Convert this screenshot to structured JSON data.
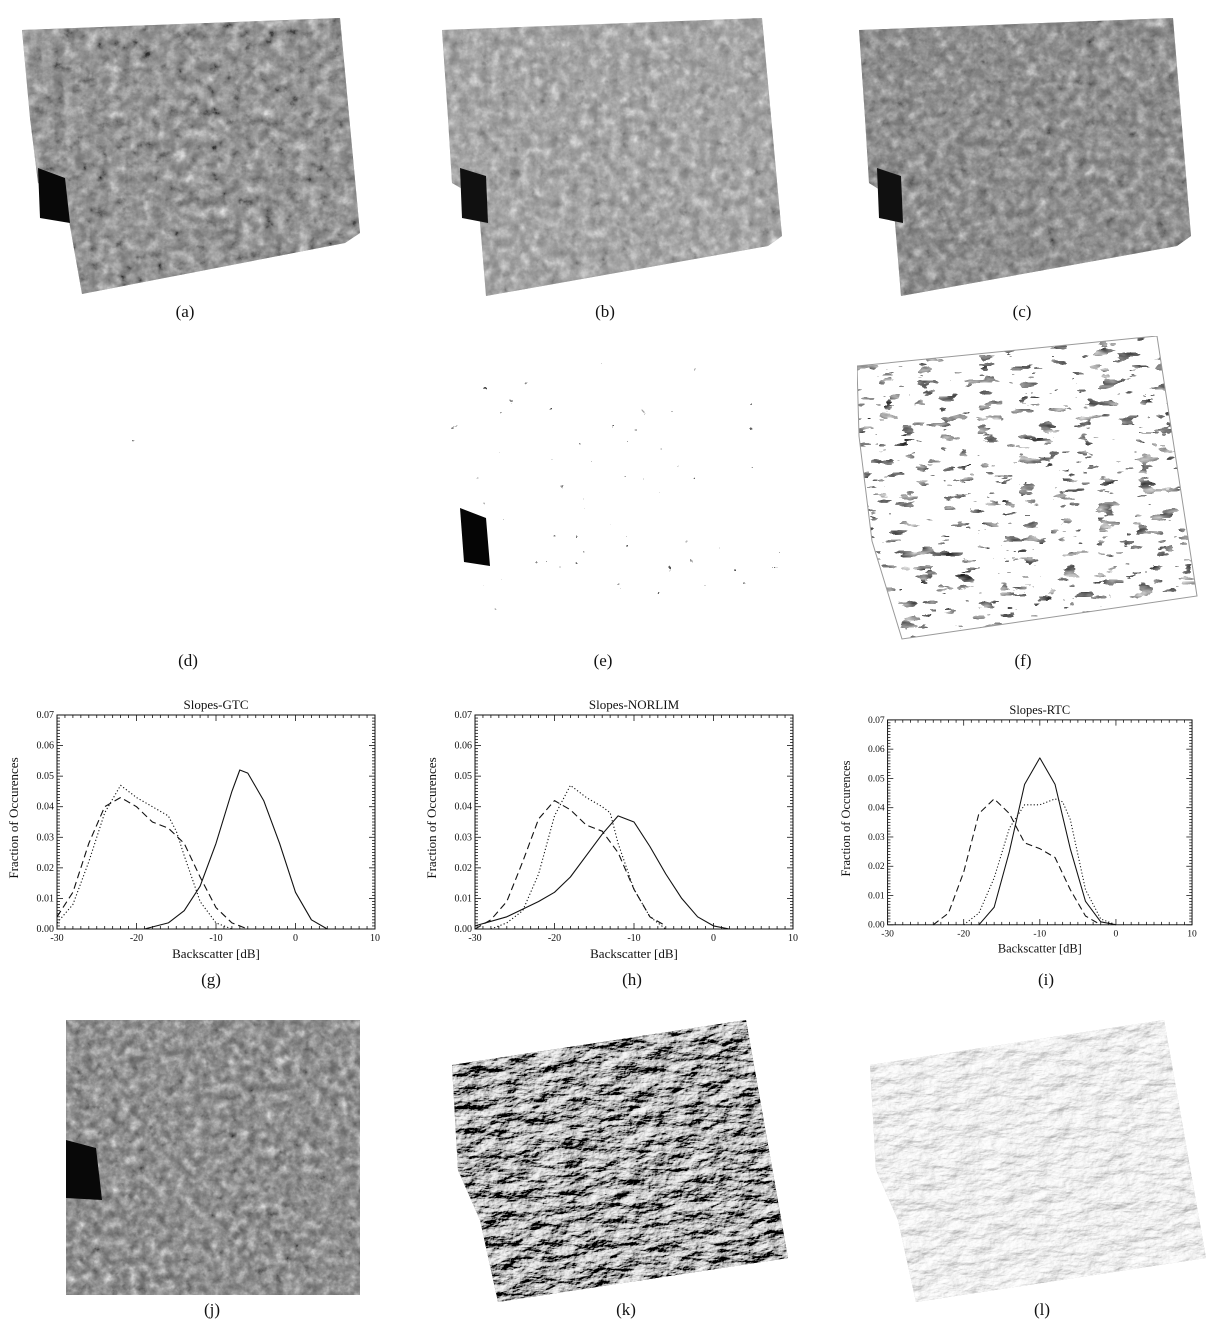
{
  "panels": [
    {
      "id": "a",
      "label": "(a)",
      "kind": "sar-gtc-image"
    },
    {
      "id": "b",
      "label": "(b)",
      "kind": "sar-norlim-image"
    },
    {
      "id": "c",
      "label": "(c)",
      "kind": "sar-rtc-image"
    },
    {
      "id": "d",
      "label": "(d)",
      "kind": "binary-slope-mask"
    },
    {
      "id": "e",
      "label": "(e)",
      "kind": "binary-slope-mask"
    },
    {
      "id": "f",
      "label": "(f)",
      "kind": "binary-slope-mask"
    },
    {
      "id": "g",
      "label": "(g)",
      "kind": "histogram"
    },
    {
      "id": "h",
      "label": "(h)",
      "kind": "histogram"
    },
    {
      "id": "i",
      "label": "(i)",
      "kind": "histogram"
    },
    {
      "id": "j",
      "label": "(j)",
      "kind": "sar-image"
    },
    {
      "id": "k",
      "label": "(k)",
      "kind": "shaded-relief-dark"
    },
    {
      "id": "l",
      "label": "(l)",
      "kind": "shaded-relief-light"
    }
  ],
  "chart_data": [
    {
      "type": "line",
      "title": "Slopes-GTC",
      "xlabel": "Backscatter [dB]",
      "ylabel": "Fraction of Occurences",
      "xlim": [
        -30,
        10
      ],
      "ylim": [
        0,
        0.07
      ],
      "xticks": [
        "-30",
        "-20",
        "-10",
        "0",
        "10"
      ],
      "yticks": [
        "0.00",
        "0.01",
        "0.02",
        "0.03",
        "0.04",
        "0.05",
        "0.06",
        "0.07"
      ],
      "series": [
        {
          "style": "solid",
          "x": [
            -19,
            -16,
            -14,
            -12,
            -10,
            -8,
            -7,
            -6,
            -4,
            -2,
            0,
            2,
            4
          ],
          "y": [
            0.0,
            0.002,
            0.006,
            0.014,
            0.028,
            0.045,
            0.052,
            0.051,
            0.042,
            0.028,
            0.012,
            0.003,
            0.0
          ]
        },
        {
          "style": "dashed",
          "x": [
            -30,
            -28,
            -26,
            -24,
            -22,
            -20,
            -18,
            -16,
            -14,
            -12,
            -10,
            -8,
            -6
          ],
          "y": [
            0.004,
            0.012,
            0.028,
            0.04,
            0.043,
            0.04,
            0.035,
            0.033,
            0.028,
            0.017,
            0.007,
            0.002,
            0.0
          ]
        },
        {
          "style": "dotted",
          "x": [
            -30,
            -28,
            -26,
            -24,
            -22,
            -20,
            -18,
            -16,
            -15,
            -14,
            -12,
            -10,
            -8
          ],
          "y": [
            0.002,
            0.008,
            0.022,
            0.038,
            0.047,
            0.043,
            0.04,
            0.037,
            0.032,
            0.024,
            0.009,
            0.002,
            0.0
          ]
        }
      ]
    },
    {
      "type": "line",
      "title": "Slopes-NORLIM",
      "xlabel": "Backscatter [dB]",
      "ylabel": "Fraction of Occurences",
      "xlim": [
        -30,
        10
      ],
      "ylim": [
        0,
        0.07
      ],
      "xticks": [
        "-30",
        "-20",
        "-10",
        "0",
        "10"
      ],
      "yticks": [
        "0.00",
        "0.01",
        "0.02",
        "0.03",
        "0.04",
        "0.05",
        "0.06",
        "0.07"
      ],
      "series": [
        {
          "style": "solid",
          "x": [
            -30,
            -26,
            -22,
            -20,
            -18,
            -16,
            -14,
            -12,
            -10,
            -8,
            -6,
            -4,
            -2,
            0,
            2,
            4
          ],
          "y": [
            0.001,
            0.004,
            0.009,
            0.012,
            0.017,
            0.024,
            0.031,
            0.037,
            0.035,
            0.027,
            0.018,
            0.01,
            0.004,
            0.001,
            0.0,
            0.0
          ]
        },
        {
          "style": "dashed",
          "x": [
            -30,
            -28,
            -26,
            -24,
            -22,
            -20,
            -18,
            -16,
            -14,
            -12,
            -10,
            -8,
            -6
          ],
          "y": [
            0.0,
            0.003,
            0.009,
            0.022,
            0.036,
            0.042,
            0.039,
            0.034,
            0.032,
            0.025,
            0.013,
            0.004,
            0.001
          ]
        },
        {
          "style": "dotted",
          "x": [
            -28,
            -26,
            -24,
            -22,
            -20,
            -18,
            -16,
            -14,
            -13,
            -12,
            -10,
            -8,
            -6
          ],
          "y": [
            0.0,
            0.002,
            0.006,
            0.018,
            0.037,
            0.047,
            0.043,
            0.04,
            0.038,
            0.028,
            0.013,
            0.004,
            0.0
          ]
        }
      ]
    },
    {
      "type": "line",
      "title": "Slopes-RTC",
      "xlabel": "Backscatter [dB]",
      "ylabel": "Fraction of Occurences",
      "xlim": [
        -30,
        10
      ],
      "ylim": [
        0,
        0.07
      ],
      "xticks": [
        "-30",
        "-20",
        "-10",
        "0",
        "10"
      ],
      "yticks": [
        "0.00",
        "0.01",
        "0.02",
        "0.03",
        "0.04",
        "0.05",
        "0.06",
        "0.07"
      ],
      "series": [
        {
          "style": "solid",
          "x": [
            -18,
            -16,
            -14,
            -12,
            -10,
            -8,
            -6,
            -4,
            -2,
            0
          ],
          "y": [
            0.0,
            0.006,
            0.025,
            0.048,
            0.057,
            0.048,
            0.026,
            0.008,
            0.001,
            0.0
          ]
        },
        {
          "style": "dashed",
          "x": [
            -24,
            -22,
            -20,
            -18,
            -16,
            -14,
            -12,
            -10,
            -8,
            -6,
            -4,
            -2
          ],
          "y": [
            0.0,
            0.004,
            0.018,
            0.038,
            0.043,
            0.038,
            0.028,
            0.026,
            0.023,
            0.012,
            0.003,
            0.0
          ]
        },
        {
          "style": "dotted",
          "x": [
            -20,
            -18,
            -16,
            -14,
            -12,
            -10,
            -8,
            -7,
            -6,
            -4,
            -2,
            0
          ],
          "y": [
            0.0,
            0.004,
            0.016,
            0.033,
            0.041,
            0.041,
            0.043,
            0.042,
            0.036,
            0.012,
            0.002,
            0.0
          ]
        }
      ]
    }
  ]
}
